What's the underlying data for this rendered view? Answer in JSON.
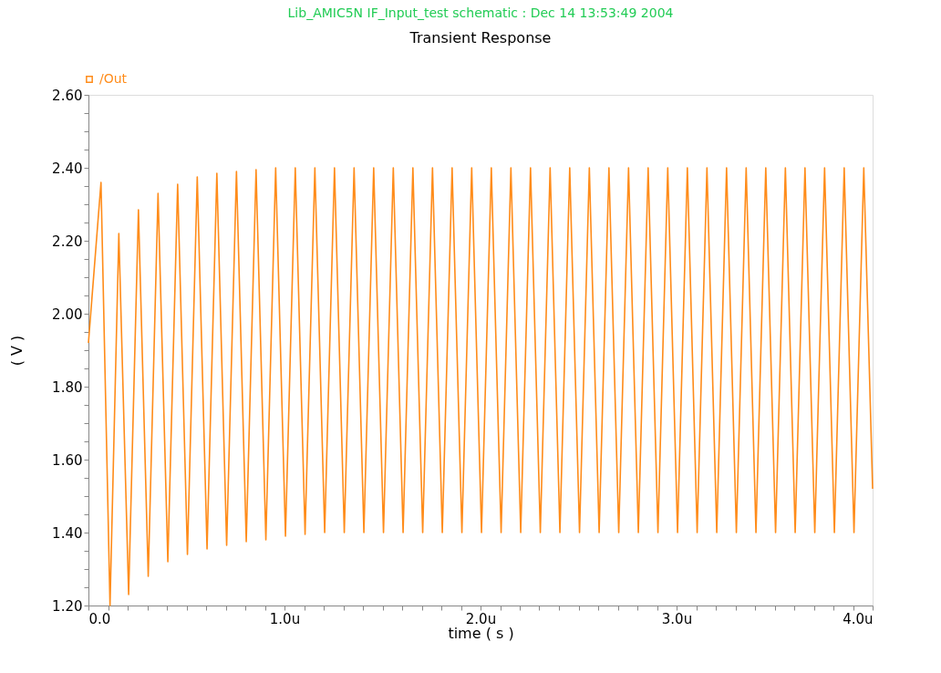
{
  "chart_data": {
    "type": "line",
    "title": "Lib_AMIC5N IF_Input_test schematic : Dec 14 13:53:49 2004",
    "subtitle": "Transient Response",
    "xlabel": "time ( s )",
    "ylabel": "( V )",
    "x": [
      0,
      0.064,
      0.11,
      0.155,
      0.205,
      0.255,
      0.305,
      0.355,
      0.405,
      0.455,
      0.505,
      0.555,
      0.605,
      0.655,
      0.705,
      0.755,
      0.805,
      0.855,
      0.905,
      0.955,
      1.005,
      1.055,
      1.105,
      1.155,
      1.205,
      1.255,
      1.305,
      1.355,
      1.405,
      1.455,
      1.505,
      1.555,
      1.605,
      1.655,
      1.705,
      1.755,
      1.805,
      1.855,
      1.905,
      1.955,
      2.005,
      2.055,
      2.105,
      2.155,
      2.205,
      2.255,
      2.305,
      2.355,
      2.405,
      2.455,
      2.505,
      2.555,
      2.605,
      2.655,
      2.705,
      2.755,
      2.805,
      2.855,
      2.905,
      2.955,
      3.005,
      3.055,
      3.105,
      3.155,
      3.205,
      3.255,
      3.305,
      3.355,
      3.405,
      3.455,
      3.505,
      3.555,
      3.605,
      3.655,
      3.705,
      3.755,
      3.805,
      3.855,
      3.905,
      3.955,
      4.0
    ],
    "series": [
      {
        "name": "/Out",
        "color": "#ff8c1a",
        "values": [
          1.92,
          2.36,
          1.2,
          2.22,
          1.23,
          2.285,
          1.28,
          2.33,
          1.32,
          2.355,
          1.34,
          2.375,
          1.355,
          2.385,
          1.365,
          2.39,
          1.375,
          2.395,
          1.38,
          2.4,
          1.39,
          2.4,
          1.395,
          2.4,
          1.4,
          2.4,
          1.4,
          2.4,
          1.4,
          2.4,
          1.4,
          2.4,
          1.4,
          2.4,
          1.4,
          2.4,
          1.4,
          2.4,
          1.4,
          2.4,
          1.4,
          2.4,
          1.4,
          2.4,
          1.4,
          2.4,
          1.4,
          2.4,
          1.4,
          2.4,
          1.4,
          2.4,
          1.4,
          2.4,
          1.4,
          2.4,
          1.4,
          2.4,
          1.4,
          2.4,
          1.4,
          2.4,
          1.4,
          2.4,
          1.4,
          2.4,
          1.4,
          2.4,
          1.4,
          2.4,
          1.4,
          2.4,
          1.4,
          2.4,
          1.4,
          2.4,
          1.4,
          2.4,
          1.4,
          2.4,
          1.52
        ]
      }
    ],
    "xlim": [
      0,
      4
    ],
    "xticks": [
      {
        "value": 0,
        "label": "0.0"
      },
      {
        "value": 0.1,
        "label": null
      },
      {
        "value": 0.2,
        "label": null
      },
      {
        "value": 0.3,
        "label": null
      },
      {
        "value": 0.4,
        "label": null
      },
      {
        "value": 0.5,
        "label": null
      },
      {
        "value": 0.6,
        "label": null
      },
      {
        "value": 0.7,
        "label": null
      },
      {
        "value": 0.8,
        "label": null
      },
      {
        "value": 0.9,
        "label": null
      },
      {
        "value": 1,
        "label": "1.0u"
      },
      {
        "value": 1.1,
        "label": null
      },
      {
        "value": 1.2,
        "label": null
      },
      {
        "value": 1.3,
        "label": null
      },
      {
        "value": 1.4,
        "label": null
      },
      {
        "value": 1.5,
        "label": null
      },
      {
        "value": 1.6,
        "label": null
      },
      {
        "value": 1.7,
        "label": null
      },
      {
        "value": 1.8,
        "label": null
      },
      {
        "value": 1.9,
        "label": null
      },
      {
        "value": 2,
        "label": "2.0u"
      },
      {
        "value": 2.1,
        "label": null
      },
      {
        "value": 2.2,
        "label": null
      },
      {
        "value": 2.3,
        "label": null
      },
      {
        "value": 2.4,
        "label": null
      },
      {
        "value": 2.5,
        "label": null
      },
      {
        "value": 2.6,
        "label": null
      },
      {
        "value": 2.7,
        "label": null
      },
      {
        "value": 2.8,
        "label": null
      },
      {
        "value": 2.9,
        "label": null
      },
      {
        "value": 3,
        "label": "3.0u"
      },
      {
        "value": 3.1,
        "label": null
      },
      {
        "value": 3.2,
        "label": null
      },
      {
        "value": 3.3,
        "label": null
      },
      {
        "value": 3.4,
        "label": null
      },
      {
        "value": 3.5,
        "label": null
      },
      {
        "value": 3.6,
        "label": null
      },
      {
        "value": 3.7,
        "label": null
      },
      {
        "value": 3.8,
        "label": null
      },
      {
        "value": 3.9,
        "label": null
      },
      {
        "value": 4,
        "label": "4.0u"
      }
    ],
    "ylim": [
      1.2,
      2.6
    ],
    "yticks": [
      {
        "value": 1.2,
        "label": "1.20"
      },
      {
        "value": 1.25,
        "label": null
      },
      {
        "value": 1.3,
        "label": null
      },
      {
        "value": 1.35,
        "label": null
      },
      {
        "value": 1.4,
        "label": "1.40"
      },
      {
        "value": 1.45,
        "label": null
      },
      {
        "value": 1.5,
        "label": null
      },
      {
        "value": 1.55,
        "label": null
      },
      {
        "value": 1.6,
        "label": "1.60"
      },
      {
        "value": 1.65,
        "label": null
      },
      {
        "value": 1.7,
        "label": null
      },
      {
        "value": 1.75,
        "label": null
      },
      {
        "value": 1.8,
        "label": "1.80"
      },
      {
        "value": 1.85,
        "label": null
      },
      {
        "value": 1.9,
        "label": null
      },
      {
        "value": 1.95,
        "label": null
      },
      {
        "value": 2.0,
        "label": "2.00"
      },
      {
        "value": 2.05,
        "label": null
      },
      {
        "value": 2.1,
        "label": null
      },
      {
        "value": 2.15,
        "label": null
      },
      {
        "value": 2.2,
        "label": "2.20"
      },
      {
        "value": 2.25,
        "label": null
      },
      {
        "value": 2.3,
        "label": null
      },
      {
        "value": 2.35,
        "label": null
      },
      {
        "value": 2.4,
        "label": "2.40"
      },
      {
        "value": 2.45,
        "label": null
      },
      {
        "value": 2.5,
        "label": null
      },
      {
        "value": 2.55,
        "label": null
      },
      {
        "value": 2.6,
        "label": "2.60"
      }
    ],
    "grid": false,
    "legend": "top left",
    "marker": "none",
    "line_style": "solid"
  }
}
